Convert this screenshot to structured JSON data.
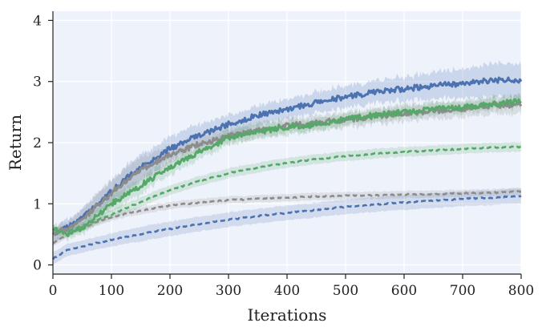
{
  "chart_data": {
    "type": "line",
    "xlabel": "Iterations",
    "ylabel": "Return",
    "xlim": [
      0,
      800
    ],
    "ylim": [
      -0.15,
      4.15
    ],
    "x_ticks": [
      0,
      100,
      200,
      300,
      400,
      500,
      600,
      700,
      800
    ],
    "y_ticks": [
      0,
      1,
      2,
      3,
      4
    ],
    "grid": true,
    "background": "#eef2fb",
    "series": [
      {
        "color": "#4c72b0",
        "style": "solid",
        "x": [
          0,
          25,
          50,
          75,
          100,
          125,
          150,
          175,
          200,
          250,
          300,
          350,
          400,
          450,
          500,
          550,
          600,
          650,
          700,
          750,
          800
        ],
        "y": [
          0.5,
          0.62,
          0.78,
          1.0,
          1.2,
          1.42,
          1.6,
          1.75,
          1.9,
          2.12,
          2.3,
          2.45,
          2.55,
          2.65,
          2.75,
          2.82,
          2.88,
          2.93,
          2.97,
          3.02,
          3.03
        ],
        "band": [
          0.12,
          0.12,
          0.14,
          0.16,
          0.18,
          0.2,
          0.2,
          0.2,
          0.2,
          0.18,
          0.16,
          0.16,
          0.16,
          0.17,
          0.18,
          0.18,
          0.2,
          0.22,
          0.24,
          0.27,
          0.28
        ]
      },
      {
        "color": "#8c8c8c",
        "style": "solid",
        "x": [
          0,
          25,
          50,
          75,
          100,
          125,
          150,
          175,
          200,
          250,
          300,
          350,
          400,
          450,
          500,
          550,
          600,
          650,
          700,
          750,
          800
        ],
        "y": [
          0.5,
          0.6,
          0.75,
          0.95,
          1.18,
          1.38,
          1.55,
          1.68,
          1.8,
          1.98,
          2.1,
          2.2,
          2.27,
          2.33,
          2.38,
          2.43,
          2.48,
          2.52,
          2.56,
          2.6,
          2.63
        ],
        "band": [
          0.1,
          0.12,
          0.15,
          0.2,
          0.22,
          0.22,
          0.2,
          0.18,
          0.15,
          0.13,
          0.12,
          0.12,
          0.12,
          0.12,
          0.12,
          0.12,
          0.13,
          0.13,
          0.14,
          0.14,
          0.15
        ]
      },
      {
        "color": "#55a868",
        "style": "solid",
        "x": [
          0,
          25,
          50,
          75,
          100,
          125,
          150,
          175,
          200,
          250,
          300,
          350,
          400,
          450,
          500,
          550,
          600,
          650,
          700,
          750,
          800
        ],
        "y": [
          0.6,
          0.5,
          0.6,
          0.8,
          1.0,
          1.15,
          1.3,
          1.45,
          1.6,
          1.85,
          2.08,
          2.18,
          2.25,
          2.3,
          2.38,
          2.45,
          2.5,
          2.55,
          2.58,
          2.64,
          2.67
        ],
        "band": [
          0.08,
          0.08,
          0.1,
          0.12,
          0.13,
          0.13,
          0.13,
          0.12,
          0.12,
          0.12,
          0.12,
          0.12,
          0.12,
          0.1,
          0.1,
          0.1,
          0.1,
          0.1,
          0.1,
          0.1,
          0.1
        ]
      },
      {
        "color": "#55a868",
        "style": "dashed",
        "x": [
          0,
          25,
          50,
          75,
          100,
          125,
          150,
          175,
          200,
          250,
          300,
          350,
          400,
          450,
          500,
          550,
          600,
          650,
          700,
          750,
          800
        ],
        "y": [
          0.58,
          0.55,
          0.64,
          0.73,
          0.82,
          0.93,
          1.03,
          1.13,
          1.22,
          1.37,
          1.5,
          1.59,
          1.67,
          1.73,
          1.78,
          1.82,
          1.85,
          1.87,
          1.9,
          1.92,
          1.93
        ],
        "band": [
          0.05,
          0.05,
          0.06,
          0.07,
          0.07,
          0.08,
          0.08,
          0.08,
          0.08,
          0.08,
          0.08,
          0.08,
          0.08,
          0.08,
          0.08,
          0.08,
          0.08,
          0.08,
          0.08,
          0.08,
          0.08
        ]
      },
      {
        "color": "#8c8c8c",
        "style": "dashed",
        "x": [
          0,
          25,
          50,
          75,
          100,
          125,
          150,
          175,
          200,
          250,
          300,
          350,
          400,
          450,
          500,
          550,
          600,
          650,
          700,
          750,
          800
        ],
        "y": [
          0.35,
          0.5,
          0.6,
          0.7,
          0.78,
          0.84,
          0.89,
          0.93,
          0.97,
          1.02,
          1.06,
          1.08,
          1.1,
          1.12,
          1.13,
          1.14,
          1.15,
          1.16,
          1.17,
          1.18,
          1.2
        ],
        "band": [
          0.05,
          0.05,
          0.05,
          0.06,
          0.06,
          0.06,
          0.06,
          0.06,
          0.06,
          0.06,
          0.06,
          0.06,
          0.06,
          0.06,
          0.06,
          0.06,
          0.06,
          0.06,
          0.06,
          0.06,
          0.06
        ]
      },
      {
        "color": "#4c72b0",
        "style": "dashed",
        "x": [
          0,
          25,
          50,
          75,
          100,
          125,
          150,
          175,
          200,
          250,
          300,
          350,
          400,
          450,
          500,
          550,
          600,
          650,
          700,
          750,
          800
        ],
        "y": [
          0.1,
          0.25,
          0.3,
          0.36,
          0.41,
          0.46,
          0.5,
          0.55,
          0.59,
          0.67,
          0.74,
          0.8,
          0.85,
          0.9,
          0.95,
          0.99,
          1.02,
          1.05,
          1.08,
          1.1,
          1.13
        ],
        "band": [
          0.1,
          0.1,
          0.1,
          0.1,
          0.11,
          0.11,
          0.12,
          0.12,
          0.12,
          0.12,
          0.12,
          0.12,
          0.12,
          0.12,
          0.12,
          0.12,
          0.12,
          0.12,
          0.12,
          0.12,
          0.12
        ]
      }
    ]
  }
}
